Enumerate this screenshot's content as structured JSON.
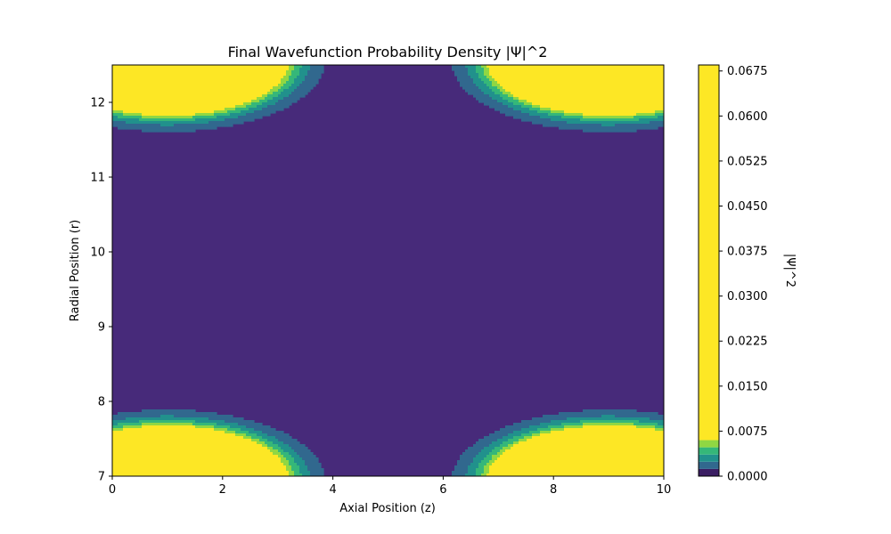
{
  "chart_data": {
    "type": "heatmap",
    "subtype": "filled-contour",
    "title": "Final Wavefunction Probability Density |Ψ|^2",
    "xlabel": "Axial Position (z)",
    "ylabel": "Radial Position (r)",
    "xlim": [
      0,
      10
    ],
    "ylim": [
      7,
      12.5
    ],
    "x_ticks": [
      0,
      2,
      4,
      6,
      8,
      10
    ],
    "y_ticks": [
      7,
      8,
      9,
      10,
      11,
      12
    ],
    "grid": false,
    "colorbar": {
      "label": "|Ψ|^2",
      "range": [
        0,
        0.0685
      ],
      "ticks": [
        "0.0000",
        "0.0075",
        "0.0150",
        "0.0225",
        "0.0300",
        "0.0375",
        "0.0450",
        "0.0525",
        "0.0600",
        "0.0675"
      ],
      "levels": [
        {
          "from": 0.0,
          "to": 0.0012,
          "color": "#3b1e63"
        },
        {
          "from": 0.0012,
          "to": 0.0024,
          "color": "#31688e"
        },
        {
          "from": 0.0024,
          "to": 0.0036,
          "color": "#21918c"
        },
        {
          "from": 0.0036,
          "to": 0.0048,
          "color": "#35b779"
        },
        {
          "from": 0.0048,
          "to": 0.006,
          "color": "#90d743"
        },
        {
          "from": 0.006,
          "to": 0.0685,
          "color": "#fde725"
        }
      ]
    },
    "field": {
      "background_color": "#472a7a",
      "model": "sum of four Gaussian lobes in corners",
      "lobes": [
        {
          "z": 1.0,
          "r": 12.55,
          "sigma_z": 1.0,
          "sigma_r": 0.33
        },
        {
          "z": 9.0,
          "r": 12.55,
          "sigma_z": 1.0,
          "sigma_r": 0.33
        },
        {
          "z": 1.0,
          "r": 6.95,
          "sigma_z": 1.0,
          "sigma_r": 0.33
        },
        {
          "z": 9.0,
          "r": 6.95,
          "sigma_z": 1.0,
          "sigma_r": 0.33
        }
      ],
      "peak_value": 0.0685
    }
  }
}
